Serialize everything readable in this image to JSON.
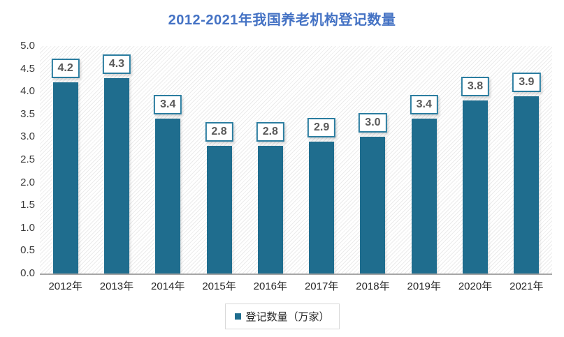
{
  "title": "2012-2021年我国养老机构登记数量",
  "colors": {
    "title": "#4472c4",
    "bar": "#1f6d8e",
    "bar_label_border": "#2b7da0",
    "bar_label_text": "#595959",
    "axis_line": "#a6a6a6",
    "axis_text": "#3a3a3a",
    "legend_border": "#d9d9d9",
    "plot_hatch": "#ebebeb"
  },
  "chart_data": {
    "type": "bar",
    "title": "2012-2021年我国养老机构登记数量",
    "categories": [
      "2012年",
      "2013年",
      "2014年",
      "2015年",
      "2016年",
      "2017年",
      "2018年",
      "2019年",
      "2020年",
      "2021年"
    ],
    "series": [
      {
        "name": "登记数量（万家）",
        "values": [
          4.2,
          4.3,
          3.4,
          2.8,
          2.8,
          2.9,
          3.0,
          3.4,
          3.8,
          3.9
        ]
      }
    ],
    "data_labels": [
      "4.2",
      "4.3",
      "3.4",
      "2.8",
      "2.8",
      "2.9",
      "3.0",
      "3.4",
      "3.8",
      "3.9"
    ],
    "xlabel": "",
    "ylabel": "",
    "ylim": [
      0,
      5
    ],
    "ytick_step": 0.5,
    "yticks": [
      "5.0",
      "4.5",
      "4.0",
      "3.5",
      "3.0",
      "2.5",
      "2.0",
      "1.5",
      "1.0",
      "0.5",
      "0.0"
    ],
    "grid": false,
    "plot_background": "diagonal-hatch",
    "legend": {
      "label": "登记数量（万家）",
      "position": "bottom"
    }
  }
}
